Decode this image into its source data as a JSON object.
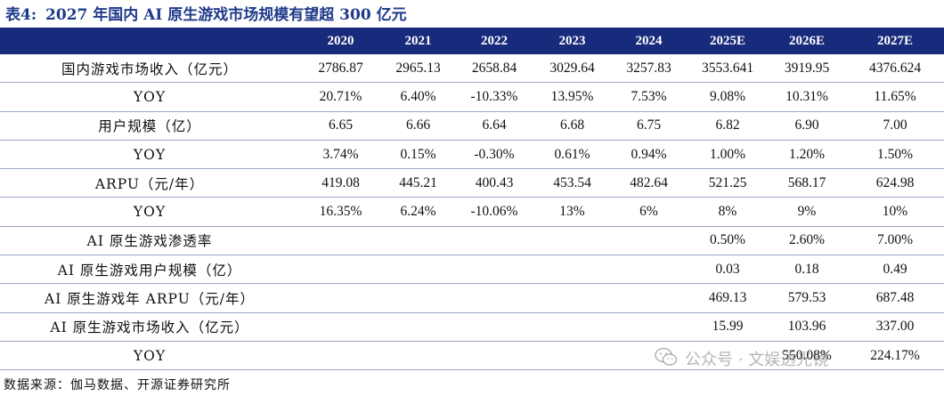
{
  "title": {
    "label": "表4:",
    "text": "2027 年国内 AI 原生游戏市场规模有望超 300 亿元"
  },
  "table": {
    "columns": [
      "2020",
      "2021",
      "2022",
      "2023",
      "2024",
      "2025E",
      "2026E",
      "2027E"
    ],
    "rows": [
      {
        "label": "国内游戏市场收入（亿元）",
        "values": [
          "2786.87",
          "2965.13",
          "2658.84",
          "3029.64",
          "3257.83",
          "3553.641",
          "3919.95",
          "4376.624"
        ]
      },
      {
        "label": "YOY",
        "values": [
          "20.71%",
          "6.40%",
          "-10.33%",
          "13.95%",
          "7.53%",
          "9.08%",
          "10.31%",
          "11.65%"
        ]
      },
      {
        "label": "用户规模（亿）",
        "values": [
          "6.65",
          "6.66",
          "6.64",
          "6.68",
          "6.75",
          "6.82",
          "6.90",
          "7.00"
        ]
      },
      {
        "label": "YOY",
        "values": [
          "3.74%",
          "0.15%",
          "-0.30%",
          "0.61%",
          "0.94%",
          "1.00%",
          "1.20%",
          "1.50%"
        ]
      },
      {
        "label": "ARPU（元/年）",
        "values": [
          "419.08",
          "445.21",
          "400.43",
          "453.54",
          "482.64",
          "521.25",
          "568.17",
          "624.98"
        ]
      },
      {
        "label": "YOY",
        "values": [
          "16.35%",
          "6.24%",
          "-10.06%",
          "13%",
          "6%",
          "8%",
          "9%",
          "10%"
        ]
      },
      {
        "label": "AI 原生游戏渗透率",
        "values": [
          "",
          "",
          "",
          "",
          "",
          "0.50%",
          "2.60%",
          "7.00%"
        ]
      },
      {
        "label": "AI 原生游戏用户规模（亿）",
        "values": [
          "",
          "",
          "",
          "",
          "",
          "0.03",
          "0.18",
          "0.49"
        ]
      },
      {
        "label": "AI 原生游戏年 ARPU（元/年）",
        "values": [
          "",
          "",
          "",
          "",
          "",
          "469.13",
          "579.53",
          "687.48"
        ]
      },
      {
        "label": "AI 原生游戏市场收入（亿元）",
        "values": [
          "",
          "",
          "",
          "",
          "",
          "15.99",
          "103.96",
          "337.00"
        ]
      },
      {
        "label": "YOY",
        "values": [
          "",
          "",
          "",
          "",
          "",
          "",
          "550.08%",
          "224.17%"
        ]
      }
    ]
  },
  "source": "数据来源：伽马数据、开源证券研究所",
  "watermark": {
    "icon": "wechat-icon",
    "text": "公众号 · 文娱透光镜"
  }
}
